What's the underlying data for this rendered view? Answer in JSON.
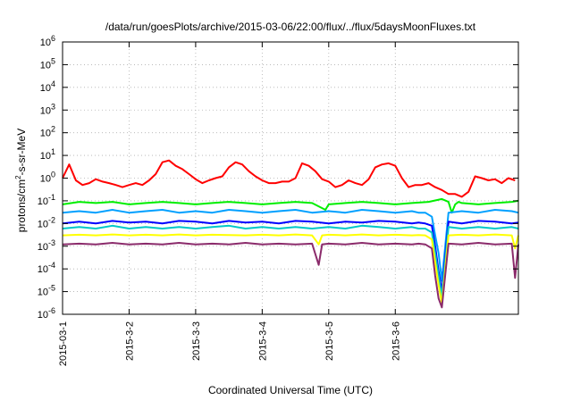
{
  "chart_data": {
    "type": "line",
    "title": "/data/run/goesPlots/archive/2015-03-06/22:00/flux/../flux/5daysMoonFluxes.txt",
    "xlabel": "Coordinated Universal Time (UTC)",
    "ylabel_parts": {
      "base": "protons/cm",
      "sup": "2",
      "rest": "-s-sr-MeV"
    },
    "yscale": "log",
    "ylim": [
      1e-06,
      1000000.0
    ],
    "yticks": [
      {
        "v": 1e-06,
        "base": "10",
        "exp": "-6"
      },
      {
        "v": 1e-05,
        "base": "10",
        "exp": "-5"
      },
      {
        "v": 0.0001,
        "base": "10",
        "exp": "-4"
      },
      {
        "v": 0.001,
        "base": "10",
        "exp": "-3"
      },
      {
        "v": 0.01,
        "base": "10",
        "exp": "-2"
      },
      {
        "v": 0.1,
        "base": "10",
        "exp": "-1"
      },
      {
        "v": 1.0,
        "base": "10",
        "exp": "0"
      },
      {
        "v": 10.0,
        "base": "10",
        "exp": "1"
      },
      {
        "v": 100.0,
        "base": "10",
        "exp": "2"
      },
      {
        "v": 1000.0,
        "base": "10",
        "exp": "3"
      },
      {
        "v": 10000.0,
        "base": "10",
        "exp": "4"
      },
      {
        "v": 100000.0,
        "base": "10",
        "exp": "5"
      },
      {
        "v": 1000000.0,
        "base": "10",
        "exp": "6"
      }
    ],
    "xlim_days": [
      0,
      6.85
    ],
    "xticks": [
      {
        "day": 0,
        "label": "2015-03-1"
      },
      {
        "day": 1,
        "label": "2015-3-2"
      },
      {
        "day": 2,
        "label": "2015-3-3"
      },
      {
        "day": 3,
        "label": "2015-3-4"
      },
      {
        "day": 4,
        "label": "2015-3-5"
      },
      {
        "day": 5,
        "label": "2015-3-6"
      }
    ],
    "grid": true,
    "legend": false,
    "series": [
      {
        "color": "#ff0000",
        "x": [
          0.0,
          0.1,
          0.2,
          0.3,
          0.4,
          0.5,
          0.6,
          0.7,
          0.8,
          0.9,
          1.0,
          1.1,
          1.2,
          1.3,
          1.4,
          1.5,
          1.6,
          1.7,
          1.8,
          1.9,
          2.0,
          2.1,
          2.2,
          2.3,
          2.4,
          2.5,
          2.6,
          2.7,
          2.8,
          2.9,
          3.0,
          3.1,
          3.2,
          3.3,
          3.4,
          3.5,
          3.6,
          3.7,
          3.8,
          3.9,
          4.0,
          4.1,
          4.2,
          4.3,
          4.4,
          4.5,
          4.6,
          4.7,
          4.8,
          4.9,
          5.0,
          5.1,
          5.2,
          5.3,
          5.4,
          5.5,
          5.6,
          5.7,
          5.8,
          5.9,
          6.0,
          6.1,
          6.2,
          6.3,
          6.4,
          6.5,
          6.6,
          6.7,
          6.8
        ],
        "y": [
          1.0,
          4.0,
          0.8,
          0.5,
          0.6,
          0.9,
          0.7,
          0.6,
          0.5,
          0.4,
          0.5,
          0.6,
          0.5,
          0.8,
          1.5,
          5.0,
          6.0,
          3.5,
          2.5,
          1.5,
          0.9,
          0.6,
          0.8,
          1.0,
          1.2,
          3.0,
          5.0,
          4.0,
          2.0,
          1.2,
          0.8,
          0.6,
          0.6,
          0.7,
          0.7,
          1.0,
          4.5,
          3.5,
          2.0,
          0.9,
          0.7,
          0.4,
          0.5,
          0.8,
          0.6,
          0.5,
          0.9,
          3.0,
          4.0,
          4.5,
          3.5,
          1.0,
          0.4,
          0.5,
          0.5,
          0.6,
          0.4,
          0.3,
          0.2,
          0.2,
          0.15,
          0.25,
          1.2,
          1.0,
          0.8,
          0.9,
          0.6,
          1.0,
          0.8
        ]
      },
      {
        "color": "#00ee00",
        "x": [
          0.0,
          0.25,
          0.5,
          0.75,
          1.0,
          1.25,
          1.5,
          1.75,
          2.0,
          2.25,
          2.5,
          2.75,
          3.0,
          3.25,
          3.5,
          3.75,
          3.95,
          4.0,
          4.25,
          4.5,
          4.75,
          5.0,
          5.25,
          5.5,
          5.7,
          5.8,
          5.85,
          5.9,
          5.95,
          6.0,
          6.25,
          6.5,
          6.75,
          6.85
        ],
        "y": [
          0.07,
          0.09,
          0.08,
          0.09,
          0.07,
          0.08,
          0.09,
          0.08,
          0.07,
          0.08,
          0.09,
          0.08,
          0.07,
          0.08,
          0.09,
          0.08,
          0.04,
          0.07,
          0.08,
          0.09,
          0.08,
          0.07,
          0.08,
          0.09,
          0.12,
          0.09,
          0.03,
          0.07,
          0.09,
          0.08,
          0.07,
          0.08,
          0.09,
          0.1
        ]
      },
      {
        "color": "#00a0ff",
        "x": [
          0.0,
          0.25,
          0.5,
          0.75,
          1.0,
          1.25,
          1.5,
          1.75,
          2.0,
          2.25,
          2.5,
          2.75,
          3.0,
          3.25,
          3.5,
          3.75,
          4.0,
          4.25,
          4.5,
          4.75,
          5.0,
          5.25,
          5.35,
          5.45,
          5.55,
          5.6,
          5.65,
          5.7,
          5.8,
          6.0,
          6.25,
          6.5,
          6.75,
          6.85
        ],
        "y": [
          0.03,
          0.035,
          0.03,
          0.04,
          0.03,
          0.035,
          0.04,
          0.03,
          0.035,
          0.03,
          0.04,
          0.035,
          0.03,
          0.035,
          0.04,
          0.03,
          0.035,
          0.03,
          0.04,
          0.035,
          0.03,
          0.035,
          0.03,
          0.03,
          0.02,
          0.003,
          0.0005,
          3e-05,
          0.03,
          0.035,
          0.03,
          0.04,
          0.035,
          0.03
        ]
      },
      {
        "color": "#0000ff",
        "x": [
          0.0,
          0.25,
          0.5,
          0.75,
          1.0,
          1.25,
          1.5,
          1.75,
          2.0,
          2.25,
          2.5,
          2.75,
          3.0,
          3.25,
          3.5,
          3.75,
          4.0,
          4.25,
          4.5,
          4.75,
          5.0,
          5.25,
          5.35,
          5.45,
          5.55,
          5.6,
          5.65,
          5.7,
          5.8,
          6.0,
          6.25,
          6.5,
          6.75,
          6.85
        ],
        "y": [
          0.01,
          0.012,
          0.01,
          0.013,
          0.011,
          0.012,
          0.01,
          0.013,
          0.012,
          0.01,
          0.013,
          0.011,
          0.012,
          0.01,
          0.013,
          0.012,
          0.01,
          0.012,
          0.011,
          0.013,
          0.012,
          0.01,
          0.011,
          0.01,
          0.008,
          0.001,
          8e-05,
          1e-05,
          0.012,
          0.01,
          0.013,
          0.012,
          0.01,
          0.011
        ]
      },
      {
        "color": "#00c8c8",
        "x": [
          0.0,
          0.25,
          0.5,
          0.75,
          1.0,
          1.25,
          1.5,
          1.75,
          2.0,
          2.25,
          2.5,
          2.75,
          3.0,
          3.25,
          3.5,
          3.75,
          4.0,
          4.25,
          4.5,
          4.75,
          5.0,
          5.25,
          5.35,
          5.45,
          5.55,
          5.6,
          5.65,
          5.7,
          5.8,
          6.0,
          6.25,
          6.5,
          6.75,
          6.85
        ],
        "y": [
          0.006,
          0.007,
          0.006,
          0.008,
          0.006,
          0.007,
          0.006,
          0.007,
          0.006,
          0.007,
          0.008,
          0.006,
          0.007,
          0.006,
          0.007,
          0.006,
          0.007,
          0.006,
          0.008,
          0.007,
          0.006,
          0.007,
          0.006,
          0.006,
          0.004,
          0.0005,
          5e-05,
          6e-06,
          0.007,
          0.006,
          0.007,
          0.006,
          0.007,
          0.006
        ]
      },
      {
        "color": "#ffff00",
        "x": [
          0.0,
          0.25,
          0.5,
          0.75,
          1.0,
          1.25,
          1.5,
          1.75,
          2.0,
          2.25,
          2.5,
          2.75,
          3.0,
          3.25,
          3.5,
          3.75,
          3.85,
          3.9,
          4.0,
          4.25,
          4.5,
          4.75,
          5.0,
          5.25,
          5.35,
          5.45,
          5.55,
          5.6,
          5.65,
          5.7,
          5.8,
          6.0,
          6.25,
          6.5,
          6.75,
          6.8,
          6.85
        ],
        "y": [
          0.003,
          0.0032,
          0.003,
          0.0033,
          0.003,
          0.0032,
          0.003,
          0.0033,
          0.003,
          0.0032,
          0.0031,
          0.003,
          0.0032,
          0.003,
          0.0033,
          0.003,
          0.0012,
          0.003,
          0.0032,
          0.003,
          0.0033,
          0.003,
          0.0032,
          0.003,
          0.0031,
          0.003,
          0.002,
          0.0002,
          2e-05,
          3e-06,
          0.003,
          0.0032,
          0.003,
          0.0033,
          0.003,
          0.0008,
          0.003
        ]
      },
      {
        "color": "#8b2b6b",
        "x": [
          0.0,
          0.25,
          0.5,
          0.75,
          1.0,
          1.25,
          1.5,
          1.75,
          2.0,
          2.25,
          2.5,
          2.75,
          3.0,
          3.25,
          3.5,
          3.75,
          3.85,
          3.9,
          4.0,
          4.25,
          4.5,
          4.75,
          5.0,
          5.25,
          5.35,
          5.45,
          5.55,
          5.6,
          5.65,
          5.7,
          5.8,
          6.0,
          6.25,
          6.5,
          6.75,
          6.8,
          6.85
        ],
        "y": [
          0.0012,
          0.0013,
          0.0012,
          0.0014,
          0.0012,
          0.0013,
          0.0012,
          0.0014,
          0.0012,
          0.0013,
          0.0012,
          0.0014,
          0.0012,
          0.0013,
          0.0012,
          0.0013,
          0.00015,
          0.0012,
          0.0013,
          0.0012,
          0.0014,
          0.0012,
          0.0013,
          0.0012,
          0.0013,
          0.0012,
          0.0008,
          5e-05,
          5e-06,
          2e-06,
          0.0013,
          0.0012,
          0.0014,
          0.0012,
          0.0013,
          4e-05,
          0.0012
        ]
      }
    ]
  }
}
